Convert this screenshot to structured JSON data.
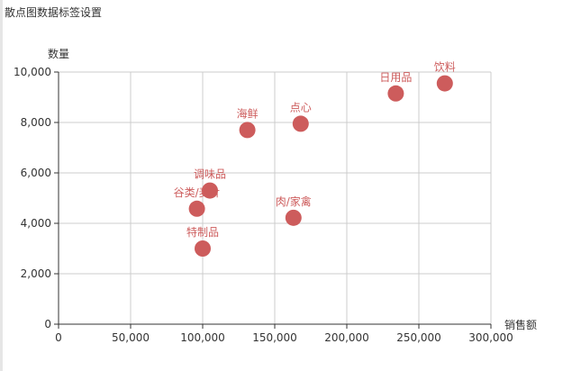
{
  "window": {
    "title": "散点图数据标签设置"
  },
  "chart_data": {
    "type": "scatter",
    "title": "散点图数据标签设置",
    "xlabel": "销售额",
    "ylabel": "数量",
    "xlim": [
      0,
      300000
    ],
    "ylim": [
      0,
      10000
    ],
    "grid": true,
    "x_ticks": [
      "0",
      "50,000",
      "100,000",
      "150,000",
      "200,000",
      "250,000",
      "300,000"
    ],
    "y_ticks": [
      "0",
      "2,000",
      "4,000",
      "6,000",
      "8,000",
      "10,000"
    ],
    "color": "#cd5c5c",
    "points": [
      {
        "label": "饮料",
        "x": 268000,
        "y": 9550
      },
      {
        "label": "日用品",
        "x": 234000,
        "y": 9150
      },
      {
        "label": "点心",
        "x": 168000,
        "y": 7950
      },
      {
        "label": "海鲜",
        "x": 131000,
        "y": 7700
      },
      {
        "label": "调味品",
        "x": 105000,
        "y": 5300
      },
      {
        "label": "谷类/麦片",
        "x": 96000,
        "y": 4580
      },
      {
        "label": "肉/家禽",
        "x": 163000,
        "y": 4220
      },
      {
        "label": "特制品",
        "x": 100000,
        "y": 3000
      }
    ]
  }
}
